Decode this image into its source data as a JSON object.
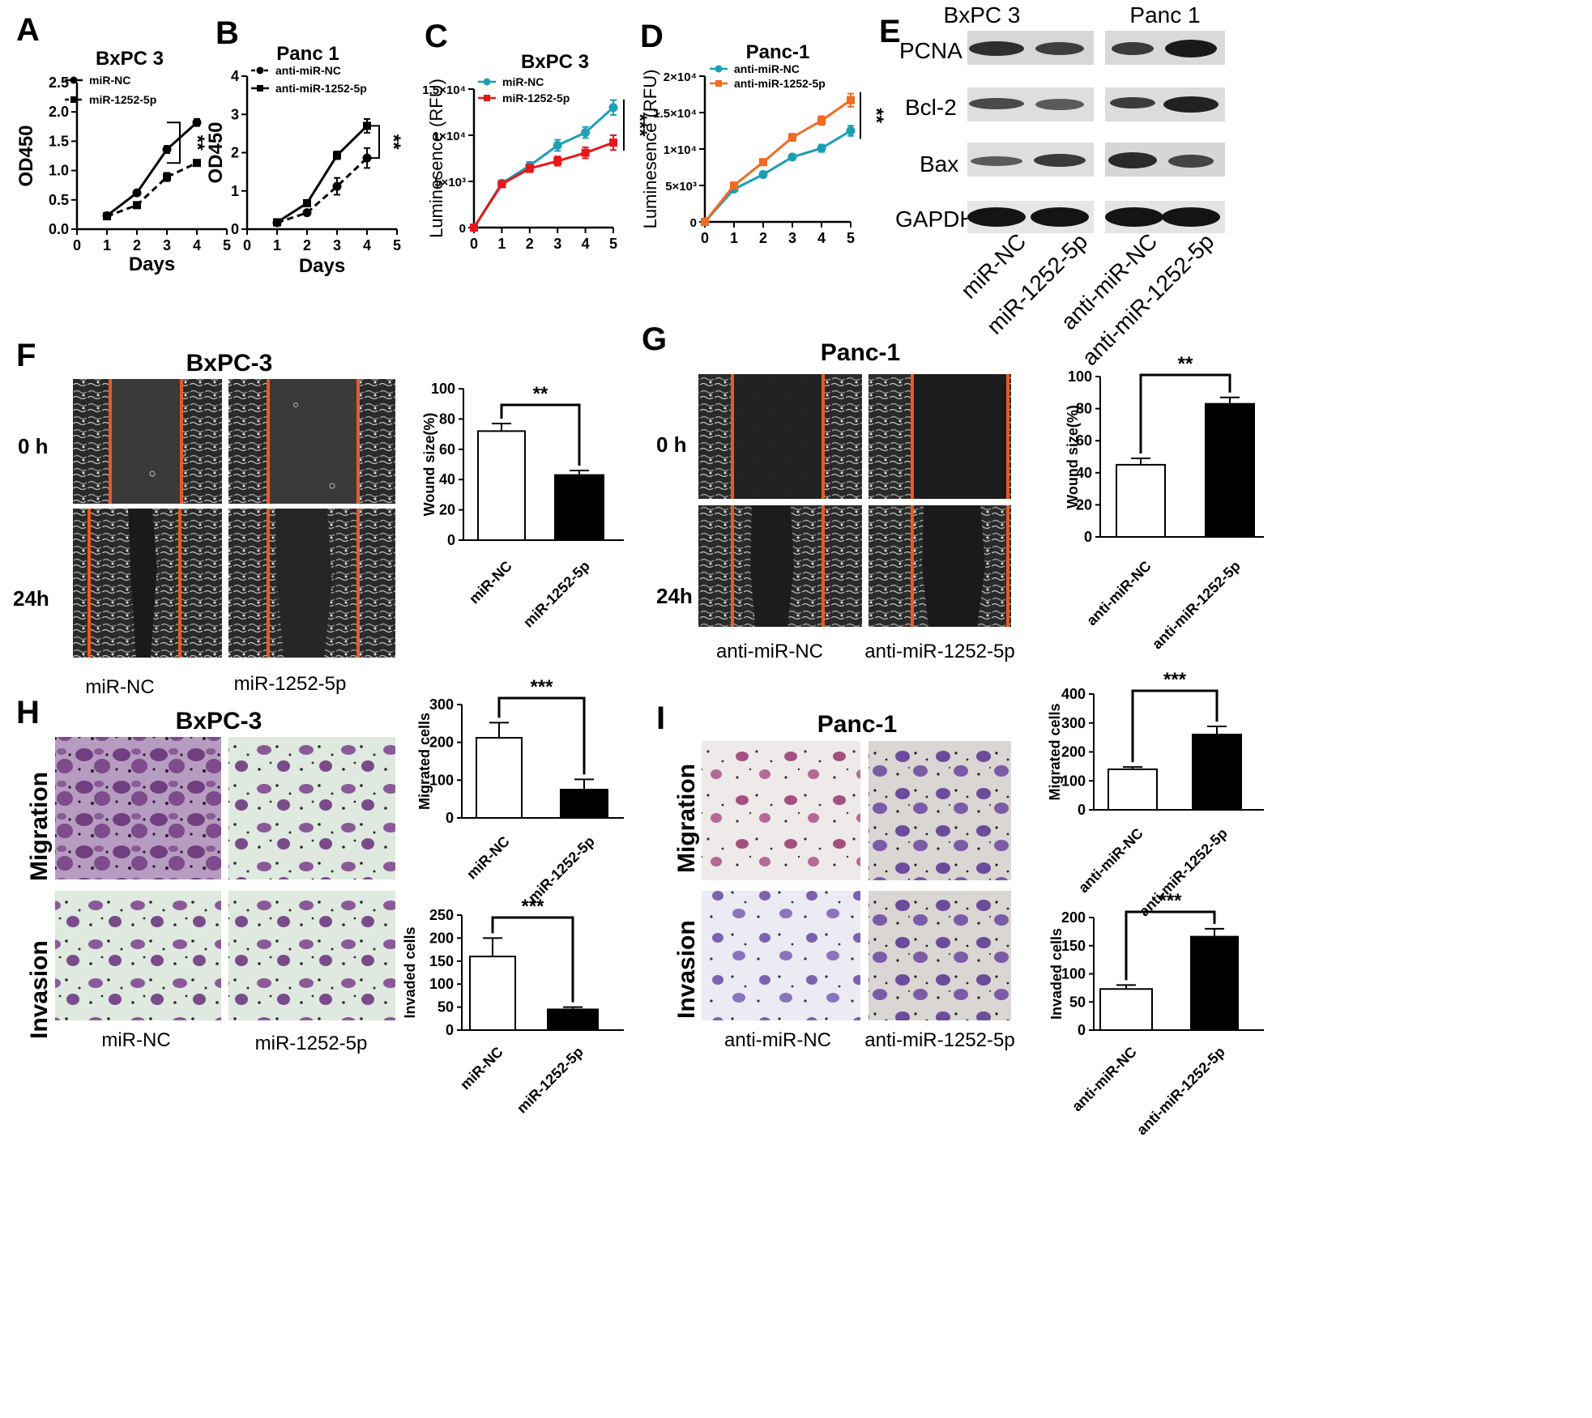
{
  "panels": {
    "A": {
      "label": "A",
      "title": "BxPC 3"
    },
    "B": {
      "label": "B",
      "title": "Panc 1"
    },
    "C": {
      "label": "C",
      "title": "BxPC 3"
    },
    "D": {
      "label": "D",
      "title": "Panc-1"
    },
    "E": {
      "label": "E"
    },
    "F": {
      "label": "F",
      "title": "BxPC-3",
      "row_labels": [
        "0 h",
        "24h"
      ],
      "captions": [
        "miR-NC",
        "miR-1252-5p"
      ]
    },
    "G": {
      "label": "G",
      "title": "Panc-1",
      "row_labels": [
        "0 h",
        "24h"
      ],
      "captions": [
        "anti-miR-NC",
        "anti-miR-1252-5p"
      ]
    },
    "H": {
      "label": "H",
      "title": "BxPC-3",
      "row_labels": [
        "Migration",
        "Invasion"
      ],
      "captions": [
        "miR-NC",
        "miR-1252-5p"
      ]
    },
    "I": {
      "label": "I",
      "title": "Panc-1",
      "row_labels": [
        "Migration",
        "Invasion"
      ],
      "captions": [
        "anti-miR-NC",
        "anti-miR-1252-5p"
      ]
    }
  },
  "blot": {
    "col_headers": [
      "BxPC 3",
      "Panc 1"
    ],
    "rows": [
      "PCNA",
      "Bcl-2",
      "Bax",
      "GAPDH"
    ],
    "lanes": [
      "miR-NC",
      "miR-1252-5p",
      "anti-miR-NC",
      "anti-miR-1252-5p"
    ]
  },
  "chart_data": [
    {
      "id": "A",
      "type": "line",
      "title": "BxPC 3",
      "xlabel": "Days",
      "ylabel": "OD450",
      "xlim": [
        0,
        5
      ],
      "ylim": [
        0,
        2.5
      ],
      "xticks": [
        "0",
        "1",
        "2",
        "3",
        "4",
        "5"
      ],
      "yticks": [
        "0.0",
        "0.5",
        "1.0",
        "1.5",
        "2.0",
        "2.5"
      ],
      "series": [
        {
          "name": "miR-NC",
          "x": [
            1,
            2,
            3,
            4
          ],
          "y": [
            0.23,
            0.62,
            1.36,
            1.82
          ],
          "err": [
            0.03,
            0.04,
            0.06,
            0.06
          ],
          "marker": "circle",
          "dash": false
        },
        {
          "name": "miR-1252-5p",
          "x": [
            1,
            2,
            3,
            4
          ],
          "y": [
            0.22,
            0.41,
            0.89,
            1.13
          ],
          "err": [
            0.03,
            0.03,
            0.07,
            0.04
          ],
          "marker": "square",
          "dash": true
        }
      ],
      "significance": "**"
    },
    {
      "id": "B",
      "type": "line",
      "title": "Panc 1",
      "xlabel": "Days",
      "ylabel": "OD450",
      "xlim": [
        0,
        5
      ],
      "ylim": [
        0,
        4
      ],
      "xticks": [
        "0",
        "1",
        "2",
        "3",
        "4",
        "5"
      ],
      "yticks": [
        "0",
        "1",
        "2",
        "3",
        "4"
      ],
      "series": [
        {
          "name": "anti-miR-NC",
          "x": [
            1,
            2,
            3,
            4
          ],
          "y": [
            0.17,
            0.43,
            1.12,
            1.86
          ],
          "err": [
            0.03,
            0.06,
            0.22,
            0.26
          ],
          "marker": "circle",
          "dash": true
        },
        {
          "name": "anti-miR-1252-5p",
          "x": [
            1,
            2,
            3,
            4
          ],
          "y": [
            0.18,
            0.68,
            1.93,
            2.7
          ],
          "err": [
            0.03,
            0.04,
            0.1,
            0.18
          ],
          "marker": "square",
          "dash": false
        }
      ],
      "significance": "**"
    },
    {
      "id": "C",
      "type": "line",
      "title": "BxPC 3",
      "xlabel": "",
      "ylabel": "Luminesence (RFU)",
      "xlim": [
        0,
        5
      ],
      "ylim": [
        0,
        15000
      ],
      "xticks": [
        "0",
        "1",
        "2",
        "3",
        "4",
        "5"
      ],
      "yticks": [
        "0",
        "5×10³",
        "1×10⁴",
        "1.5×10⁴"
      ],
      "series": [
        {
          "name": "miR-NC",
          "color": "#1c9fb3",
          "x": [
            0,
            1,
            2,
            3,
            4,
            5
          ],
          "y": [
            0,
            4800,
            6700,
            8900,
            10300,
            13000
          ],
          "err": [
            0,
            300,
            400,
            600,
            600,
            800
          ],
          "marker": "circle"
        },
        {
          "name": "miR-1252-5p",
          "color": "#e8161b",
          "x": [
            0,
            1,
            2,
            3,
            4,
            5
          ],
          "y": [
            0,
            4700,
            6400,
            7200,
            8100,
            9200
          ],
          "err": [
            0,
            300,
            400,
            500,
            600,
            800
          ],
          "marker": "square"
        }
      ],
      "significance": "***"
    },
    {
      "id": "D",
      "type": "line",
      "title": "Panc-1",
      "xlabel": "",
      "ylabel": "Luminesence (RFU)",
      "xlim": [
        0,
        5
      ],
      "ylim": [
        0,
        20000
      ],
      "xticks": [
        "0",
        "1",
        "2",
        "3",
        "4",
        "5"
      ],
      "yticks": [
        "0",
        "5×10³",
        "1×10⁴",
        "1.5×10⁴",
        "2×10⁴"
      ],
      "series": [
        {
          "name": "anti-miR-NC",
          "color": "#1c9fb3",
          "x": [
            0,
            1,
            2,
            3,
            4,
            5
          ],
          "y": [
            0,
            4500,
            6500,
            8900,
            10100,
            12500
          ],
          "err": [
            0,
            300,
            400,
            400,
            500,
            700
          ],
          "marker": "circle"
        },
        {
          "name": "anti-miR-1252-5p",
          "color": "#f26b21",
          "x": [
            0,
            1,
            2,
            3,
            4,
            5
          ],
          "y": [
            0,
            5000,
            8200,
            11600,
            13900,
            16700
          ],
          "err": [
            0,
            300,
            400,
            500,
            600,
            900
          ],
          "marker": "square"
        }
      ],
      "significance": "**"
    },
    {
      "id": "F",
      "type": "bar",
      "ylabel": "Wound size(%)",
      "ylim": [
        0,
        100
      ],
      "yticks": [
        "0",
        "20",
        "40",
        "60",
        "80",
        "100"
      ],
      "categories": [
        "miR-NC",
        "miR-1252-5p"
      ],
      "values": [
        72,
        43
      ],
      "err": [
        5,
        3
      ],
      "significance": "**"
    },
    {
      "id": "G",
      "type": "bar",
      "ylabel": "Wound size(%)",
      "ylim": [
        0,
        100
      ],
      "yticks": [
        "0",
        "20",
        "40",
        "60",
        "80",
        "100"
      ],
      "categories": [
        "anti-miR-NC",
        "anti-miR-1252-5p"
      ],
      "values": [
        45,
        83
      ],
      "err": [
        4,
        4
      ],
      "significance": "**"
    },
    {
      "id": "H-mig",
      "type": "bar",
      "ylabel": "Migrated cells",
      "ylim": [
        0,
        300
      ],
      "yticks": [
        "0",
        "100",
        "200",
        "300"
      ],
      "categories": [
        "miR-NC",
        "miR-1252-5p"
      ],
      "values": [
        212,
        75
      ],
      "err": [
        40,
        27
      ],
      "significance": "***"
    },
    {
      "id": "H-inv",
      "type": "bar",
      "ylabel": "Invaded cells",
      "ylim": [
        0,
        250
      ],
      "yticks": [
        "0",
        "50",
        "100",
        "150",
        "200",
        "250"
      ],
      "categories": [
        "miR-NC",
        "miR-1252-5p"
      ],
      "values": [
        160,
        45
      ],
      "err": [
        40,
        5
      ],
      "significance": "***"
    },
    {
      "id": "I-mig",
      "type": "bar",
      "ylabel": "Migrated cells",
      "ylim": [
        0,
        400
      ],
      "yticks": [
        "0",
        "100",
        "200",
        "300",
        "400"
      ],
      "categories": [
        "anti-miR-NC",
        "anti-miR-1252-5p"
      ],
      "values": [
        140,
        260
      ],
      "err": [
        8,
        28
      ],
      "significance": "***"
    },
    {
      "id": "I-inv",
      "type": "bar",
      "ylabel": "Invaded cells",
      "ylim": [
        0,
        200
      ],
      "yticks": [
        "0",
        "50",
        "100",
        "150",
        "200"
      ],
      "categories": [
        "anti-miR-NC",
        "anti-miR-1252-5p"
      ],
      "values": [
        73,
        166
      ],
      "err": [
        7,
        14
      ],
      "significance": "***"
    }
  ]
}
